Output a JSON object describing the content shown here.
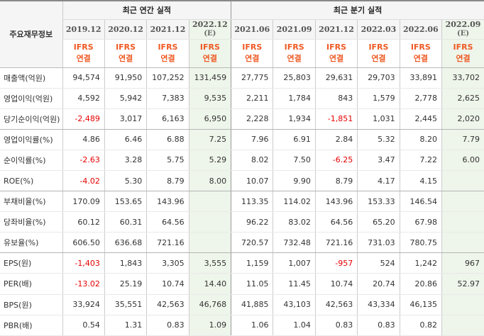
{
  "header": {
    "corner_label": "주요재무정보",
    "annual_group": "최근 연간 실적",
    "quarter_group": "최근 분기 실적",
    "periods": [
      {
        "label": "2019.12",
        "sub": ""
      },
      {
        "label": "2020.12",
        "sub": ""
      },
      {
        "label": "2021.12",
        "sub": ""
      },
      {
        "label": "2022.12",
        "sub": "(E)"
      },
      {
        "label": "2021.06",
        "sub": ""
      },
      {
        "label": "2021.09",
        "sub": ""
      },
      {
        "label": "2021.12",
        "sub": ""
      },
      {
        "label": "2022.03",
        "sub": ""
      },
      {
        "label": "2022.06",
        "sub": ""
      },
      {
        "label": "2022.09",
        "sub": "(E)"
      }
    ],
    "ifrs_line1": "IFRS",
    "ifrs_line2": "연결"
  },
  "rows": [
    {
      "label": "매출액(억원)",
      "values": [
        "94,574",
        "91,950",
        "107,252",
        "131,459",
        "27,775",
        "25,803",
        "29,631",
        "29,703",
        "33,891",
        "33,702"
      ],
      "negative": [
        false,
        false,
        false,
        false,
        false,
        false,
        false,
        false,
        false,
        false
      ]
    },
    {
      "label": "영업이익(억원)",
      "values": [
        "4,592",
        "5,942",
        "7,383",
        "9,535",
        "2,211",
        "1,784",
        "843",
        "1,579",
        "2,778",
        "2,625"
      ],
      "negative": [
        false,
        false,
        false,
        false,
        false,
        false,
        false,
        false,
        false,
        false
      ]
    },
    {
      "label": "당기순이익(억원)",
      "values": [
        "-2,489",
        "3,017",
        "6,163",
        "6,950",
        "2,228",
        "1,934",
        "-1,851",
        "1,031",
        "2,445",
        "2,020"
      ],
      "negative": [
        true,
        false,
        false,
        false,
        false,
        false,
        true,
        false,
        false,
        false
      ]
    },
    {
      "label": "영업이익률(%)",
      "values": [
        "4.86",
        "6.46",
        "6.88",
        "7.25",
        "7.96",
        "6.91",
        "2.84",
        "5.32",
        "8.20",
        "7.79"
      ],
      "negative": [
        false,
        false,
        false,
        false,
        false,
        false,
        false,
        false,
        false,
        false
      ]
    },
    {
      "label": "순이익률(%)",
      "values": [
        "-2.63",
        "3.28",
        "5.75",
        "5.29",
        "8.02",
        "7.50",
        "-6.25",
        "3.47",
        "7.22",
        "6.00"
      ],
      "negative": [
        true,
        false,
        false,
        false,
        false,
        false,
        true,
        false,
        false,
        false
      ]
    },
    {
      "label": "ROE(%)",
      "values": [
        "-4.02",
        "5.30",
        "8.79",
        "8.00",
        "10.07",
        "9.90",
        "8.79",
        "4.17",
        "4.15",
        ""
      ],
      "negative": [
        true,
        false,
        false,
        false,
        false,
        false,
        false,
        false,
        false,
        false
      ]
    },
    {
      "label": "부채비율(%)",
      "values": [
        "170.09",
        "153.65",
        "143.96",
        "",
        "113.35",
        "114.02",
        "143.96",
        "153.33",
        "146.54",
        ""
      ],
      "negative": [
        false,
        false,
        false,
        false,
        false,
        false,
        false,
        false,
        false,
        false
      ]
    },
    {
      "label": "당좌비율(%)",
      "values": [
        "60.12",
        "60.31",
        "64.56",
        "",
        "96.22",
        "83.02",
        "64.56",
        "65.20",
        "67.98",
        ""
      ],
      "negative": [
        false,
        false,
        false,
        false,
        false,
        false,
        false,
        false,
        false,
        false
      ]
    },
    {
      "label": "유보율(%)",
      "values": [
        "606.50",
        "636.68",
        "721.16",
        "",
        "720.57",
        "732.48",
        "721.16",
        "731.03",
        "780.75",
        ""
      ],
      "negative": [
        false,
        false,
        false,
        false,
        false,
        false,
        false,
        false,
        false,
        false
      ]
    },
    {
      "label": "EPS(원)",
      "values": [
        "-1,403",
        "1,843",
        "3,305",
        "3,555",
        "1,159",
        "1,007",
        "-957",
        "524",
        "1,242",
        "967"
      ],
      "negative": [
        true,
        false,
        false,
        false,
        false,
        false,
        true,
        false,
        false,
        false
      ]
    },
    {
      "label": "PER(배)",
      "values": [
        "-13.02",
        "25.19",
        "10.74",
        "14.40",
        "11.05",
        "11.45",
        "10.74",
        "20.74",
        "20.86",
        "52.97"
      ],
      "negative": [
        true,
        false,
        false,
        false,
        false,
        false,
        false,
        false,
        false,
        false
      ]
    },
    {
      "label": "BPS(원)",
      "values": [
        "33,924",
        "35,551",
        "42,563",
        "46,768",
        "41,885",
        "43,103",
        "42,563",
        "43,334",
        "46,135",
        ""
      ],
      "negative": [
        false,
        false,
        false,
        false,
        false,
        false,
        false,
        false,
        false,
        false
      ]
    },
    {
      "label": "PBR(배)",
      "values": [
        "0.54",
        "1.31",
        "0.83",
        "1.09",
        "1.06",
        "1.04",
        "0.83",
        "0.83",
        "0.82",
        ""
      ],
      "negative": [
        false,
        false,
        false,
        false,
        false,
        false,
        false,
        false,
        false,
        false
      ]
    }
  ],
  "group_ends": [
    2,
    5,
    8
  ]
}
